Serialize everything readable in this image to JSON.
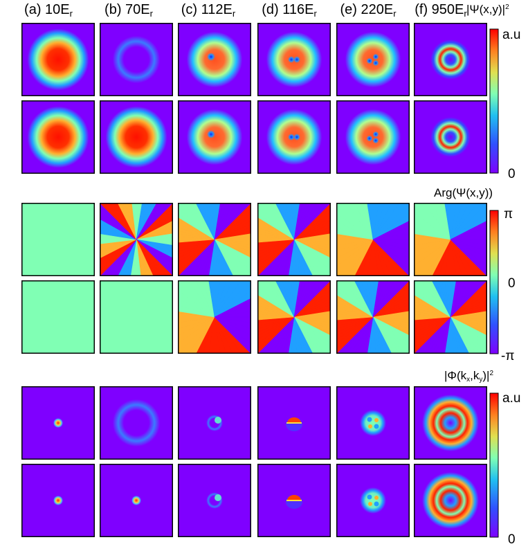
{
  "columns": [
    {
      "prefix": "(a) 10E",
      "sub": "r"
    },
    {
      "prefix": "(b) 70E",
      "sub": "r"
    },
    {
      "prefix": "(c) 112E",
      "sub": "r"
    },
    {
      "prefix": "(d) 116E",
      "sub": "r"
    },
    {
      "prefix": "(e) 220E",
      "sub": "r"
    },
    {
      "prefix": "(f) 950E",
      "sub": "r"
    }
  ],
  "density_colorbar": {
    "title_pre": "|Ψ(x,y)|",
    "title_sup": "2",
    "max_label": "a.u",
    "min_label": "0"
  },
  "phase_colorbar": {
    "title": "Arg(Ψ(x,y))",
    "max_label": "π",
    "mid_label": "0",
    "min_label": "-π"
  },
  "momentum_colorbar": {
    "title_pre": "|Φ(k",
    "title_sub1": "x",
    "title_mid": ",k",
    "title_sub2": "y",
    "title_post": ")|",
    "title_sup": "2",
    "max_label": "a.u",
    "min_label": "0"
  },
  "colors": {
    "purple": "#7f00ff",
    "blue": "#2060ff",
    "green": "#80ffb4",
    "red": "#ff0000"
  },
  "panels": {
    "density": [
      [
        "blob-wide",
        "faint-ring",
        "blob-1vortex",
        "blob-2vortex-v",
        "blob-3vortex",
        "ring-thin"
      ],
      [
        "blob-wide",
        "blob-wide",
        "blob-1vortex",
        "blob-2vortex-v",
        "blob-3vortex",
        "ring-thin"
      ]
    ],
    "phase": [
      [
        "flat",
        "phase-4",
        "phase-2",
        "phase-2",
        "phase-1",
        "phase-1"
      ],
      [
        "flat",
        "flat",
        "phase-1",
        "phase-2",
        "phase-2",
        "phase-2"
      ]
    ],
    "momentum": [
      [
        "dot",
        "faint-ring",
        "vortex-pair",
        "half-moon",
        "quad-blob",
        "ring-thick"
      ],
      [
        "dot",
        "dot",
        "vortex-pair",
        "half-moon",
        "quad-blob",
        "ring-thick"
      ]
    ]
  }
}
